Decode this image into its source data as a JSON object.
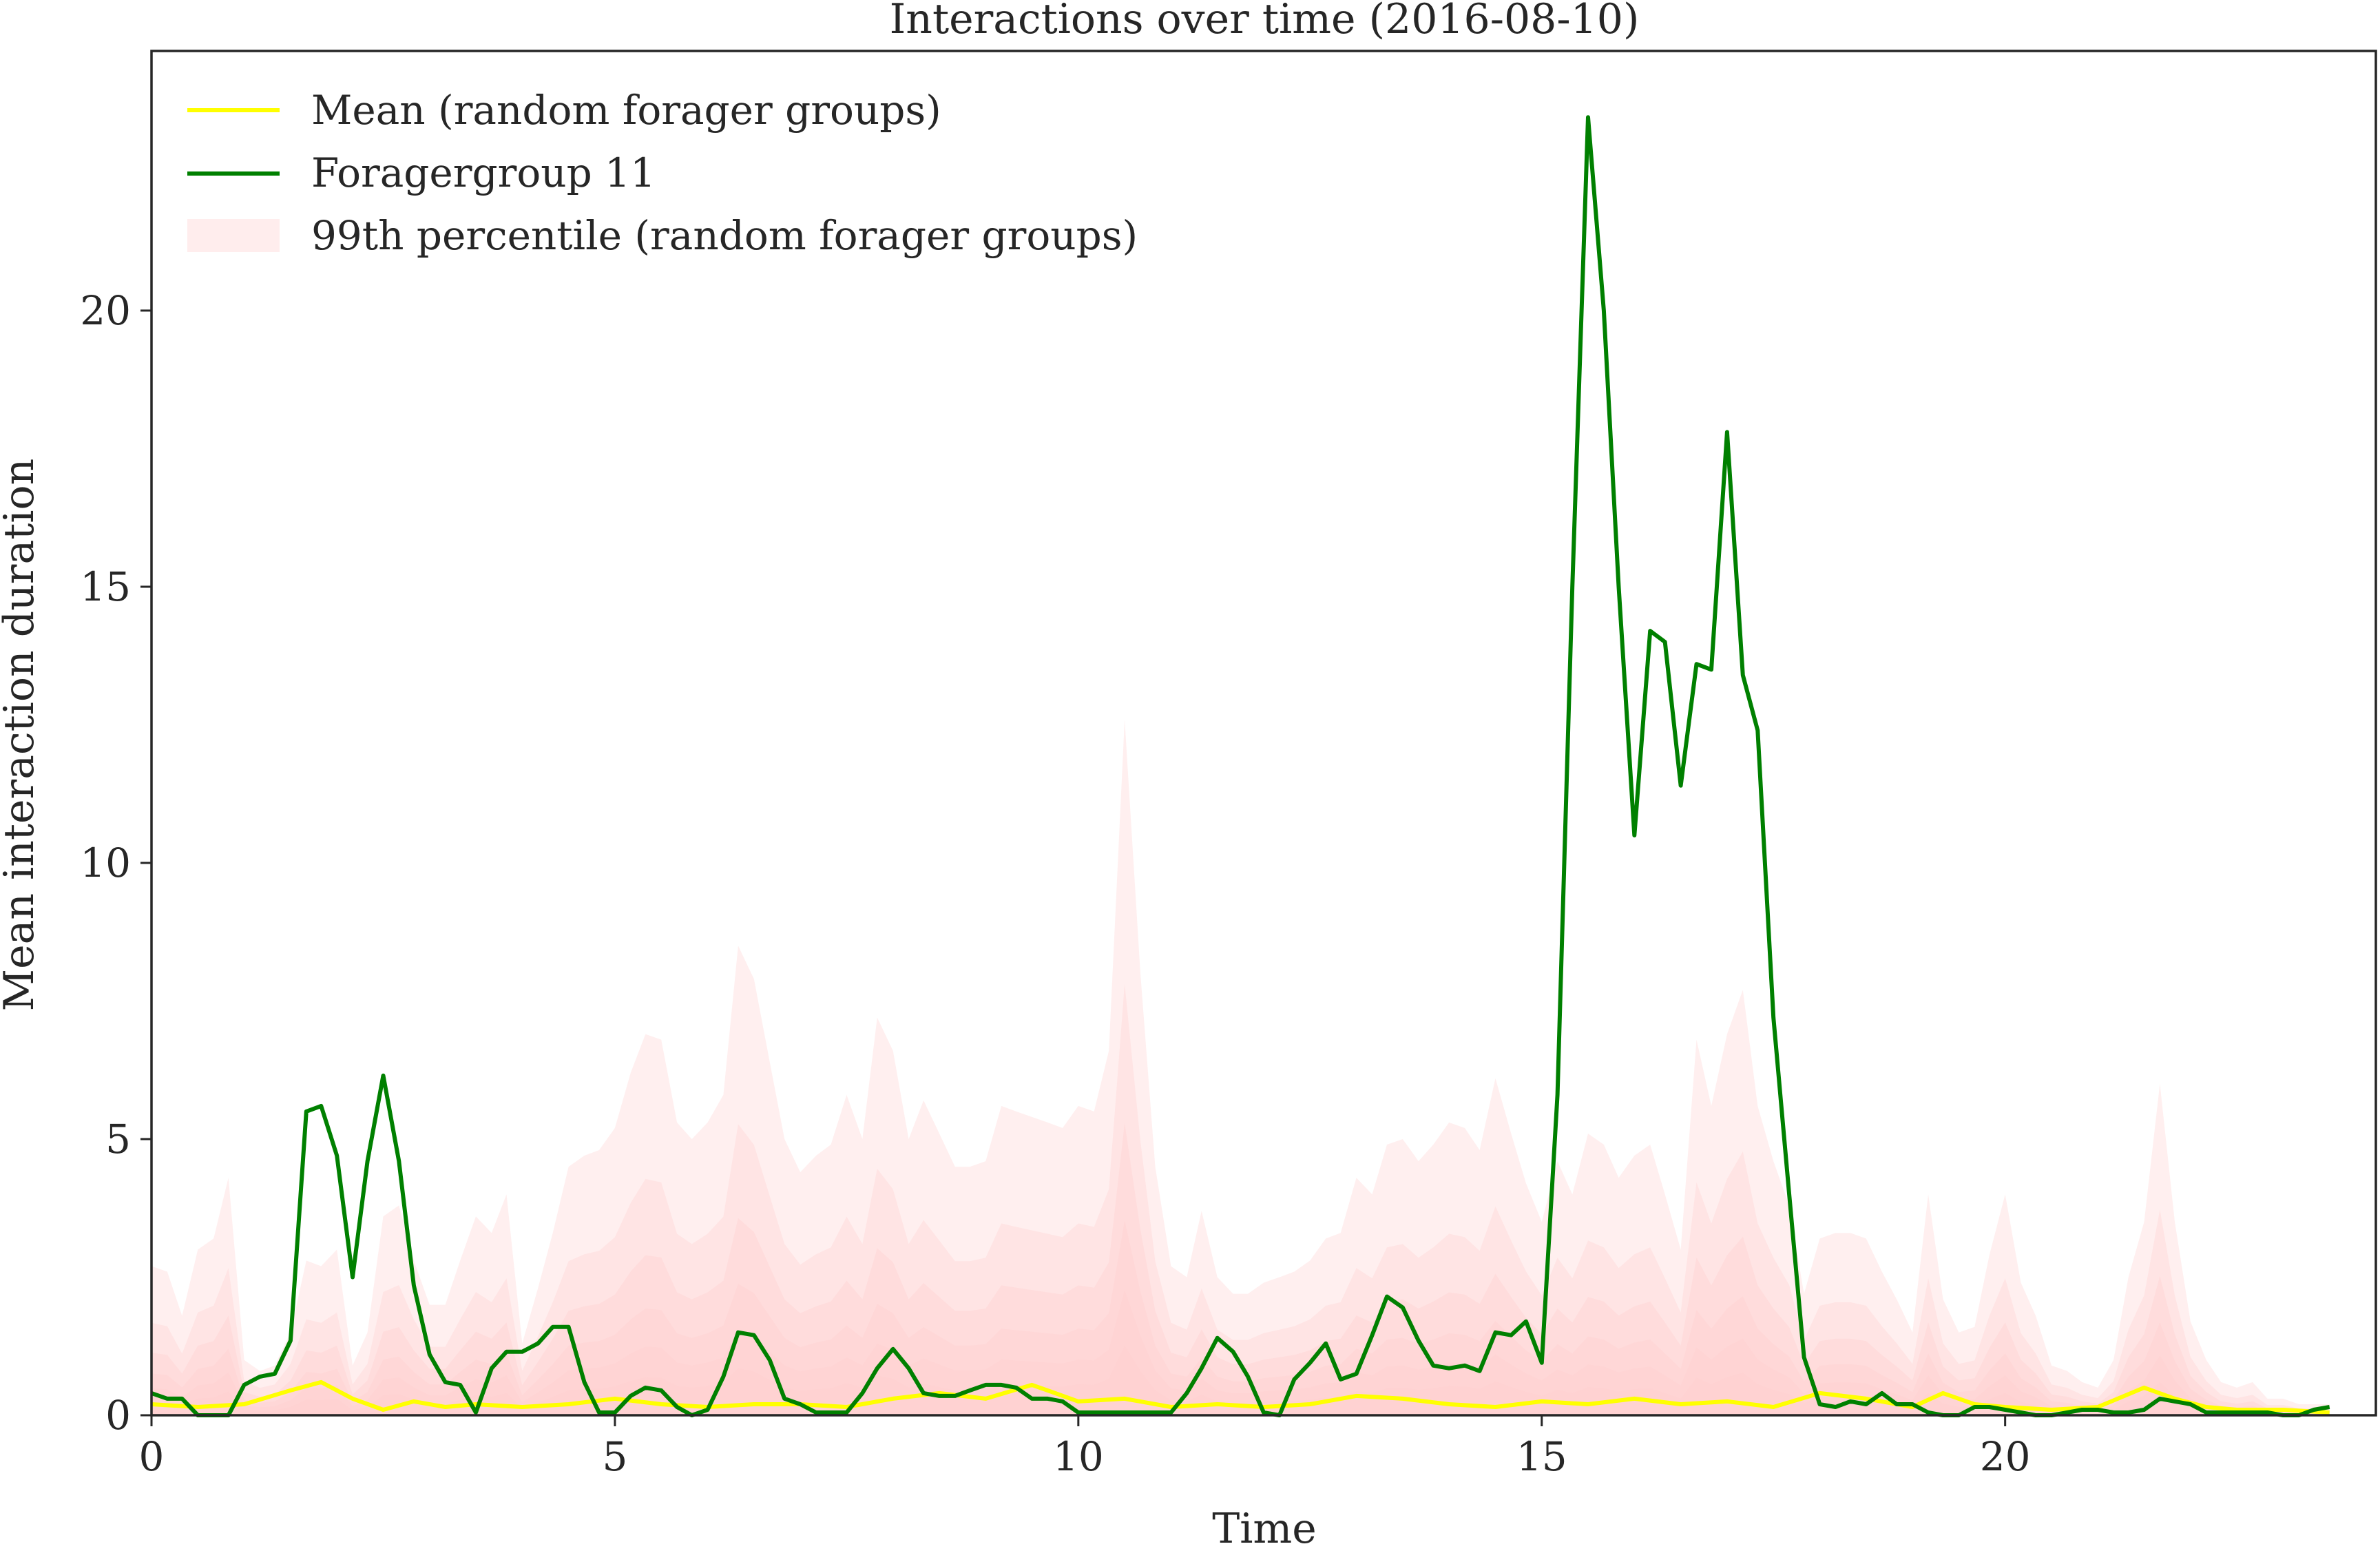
{
  "chart_data": {
    "type": "line",
    "title": "Interactions over time (2016-08-10)",
    "xlabel": "Time",
    "ylabel": "Mean interaction duration",
    "xlim": [
      0,
      24
    ],
    "ylim": [
      0,
      24.7
    ],
    "xticks": [
      0,
      5,
      10,
      15,
      20
    ],
    "yticks": [
      0,
      5,
      10,
      15,
      20
    ],
    "legend_position": "top-left",
    "grid": false,
    "legend": [
      {
        "label": "Mean (random forager groups)",
        "kind": "line",
        "color": "#ffff00"
      },
      {
        "label": "Foragergroup 11",
        "kind": "line",
        "color": "#008000"
      },
      {
        "label": "99th percentile (random forager groups)",
        "kind": "band",
        "color": "#ffcccc"
      }
    ],
    "series": [
      {
        "name": "Foragergroup 11",
        "color": "#008000",
        "x": [
          0,
          0.17,
          0.33,
          0.5,
          0.67,
          0.83,
          1.0,
          1.17,
          1.33,
          1.5,
          1.67,
          1.83,
          2.0,
          2.17,
          2.33,
          2.5,
          2.67,
          2.83,
          3.0,
          3.17,
          3.33,
          3.5,
          3.67,
          3.83,
          4.0,
          4.17,
          4.33,
          4.5,
          4.67,
          4.83,
          5.0,
          5.17,
          5.33,
          5.5,
          5.67,
          5.83,
          6.0,
          6.17,
          6.33,
          6.5,
          6.67,
          6.83,
          7.0,
          7.17,
          7.33,
          7.5,
          7.67,
          7.83,
          8.0,
          8.17,
          8.33,
          8.5,
          8.67,
          8.83,
          9.0,
          9.17,
          9.33,
          9.5,
          9.67,
          9.83,
          10.0,
          10.17,
          10.33,
          10.5,
          10.67,
          10.83,
          11.0,
          11.17,
          11.33,
          11.5,
          11.67,
          11.83,
          12.0,
          12.17,
          12.33,
          12.5,
          12.67,
          12.83,
          13.0,
          13.17,
          13.33,
          13.5,
          13.67,
          13.83,
          14.0,
          14.17,
          14.33,
          14.5,
          14.67,
          14.83,
          15.0,
          15.17,
          15.33,
          15.5,
          15.67,
          15.83,
          16.0,
          16.17,
          16.33,
          16.5,
          16.67,
          16.83,
          17.0,
          17.17,
          17.33,
          17.5,
          17.67,
          17.83,
          18.0,
          18.17,
          18.33,
          18.5,
          18.67,
          18.83,
          19.0,
          19.17,
          19.33,
          19.5,
          19.67,
          19.83,
          20.0,
          20.17,
          20.33,
          20.5,
          20.67,
          20.83,
          21.0,
          21.17,
          21.33,
          21.5,
          21.67,
          21.83,
          22.0,
          22.17,
          22.33,
          22.5,
          22.67,
          22.83,
          23.0,
          23.17,
          23.33,
          23.5
        ],
        "values": [
          0.4,
          0.3,
          0.3,
          0.0,
          0.0,
          0.0,
          0.55,
          0.7,
          0.75,
          1.35,
          5.5,
          5.6,
          4.7,
          2.5,
          4.6,
          6.15,
          4.6,
          2.35,
          1.1,
          0.6,
          0.55,
          0.05,
          0.85,
          1.15,
          1.15,
          1.3,
          1.6,
          1.6,
          0.6,
          0.05,
          0.05,
          0.35,
          0.5,
          0.45,
          0.15,
          0.0,
          0.1,
          0.7,
          1.5,
          1.45,
          1.0,
          0.3,
          0.2,
          0.05,
          0.05,
          0.05,
          0.4,
          0.85,
          1.2,
          0.85,
          0.4,
          0.35,
          0.35,
          0.45,
          0.55,
          0.55,
          0.5,
          0.3,
          0.3,
          0.25,
          0.05,
          0.05,
          0.05,
          0.05,
          0.05,
          0.05,
          0.05,
          0.4,
          0.85,
          1.4,
          1.15,
          0.7,
          0.05,
          0.0,
          0.65,
          0.95,
          1.3,
          0.65,
          0.75,
          1.45,
          2.15,
          1.95,
          1.35,
          0.9,
          0.85,
          0.9,
          0.8,
          1.5,
          1.45,
          1.7,
          0.95,
          5.8,
          15.0,
          23.5,
          20.0,
          15.0,
          10.5,
          14.2,
          14.0,
          11.4,
          13.6,
          13.5,
          17.8,
          13.4,
          12.4,
          7.2,
          4.0,
          1.05,
          0.2,
          0.15,
          0.25,
          0.2,
          0.4,
          0.2,
          0.2,
          0.05,
          0.0,
          0.0,
          0.15,
          0.15,
          0.1,
          0.05,
          0.0,
          0.0,
          0.05,
          0.1,
          0.1,
          0.05,
          0.05,
          0.1,
          0.3,
          0.25,
          0.2,
          0.05,
          0.05,
          0.05,
          0.05,
          0.05,
          0.0,
          0.0,
          0.1,
          0.15
        ]
      },
      {
        "name": "Mean (random forager groups)",
        "color": "#ffff00",
        "x": [
          0,
          0.5,
          1.0,
          1.5,
          1.83,
          2.17,
          2.5,
          2.83,
          3.17,
          3.5,
          4.0,
          4.5,
          5.0,
          5.5,
          6.0,
          6.5,
          7.0,
          7.5,
          8.0,
          8.5,
          9.0,
          9.5,
          10.0,
          10.5,
          11.0,
          11.5,
          12.0,
          12.5,
          13.0,
          13.5,
          14.0,
          14.5,
          15.0,
          15.5,
          16.0,
          16.5,
          17.0,
          17.5,
          18.0,
          18.5,
          19.0,
          19.33,
          19.67,
          20.0,
          20.5,
          21.0,
          21.5,
          21.83,
          22.17,
          22.5,
          23.0,
          23.5
        ],
        "values": [
          0.2,
          0.15,
          0.2,
          0.45,
          0.6,
          0.3,
          0.1,
          0.25,
          0.15,
          0.2,
          0.15,
          0.2,
          0.3,
          0.2,
          0.15,
          0.2,
          0.2,
          0.15,
          0.3,
          0.4,
          0.3,
          0.55,
          0.25,
          0.3,
          0.15,
          0.2,
          0.15,
          0.2,
          0.35,
          0.3,
          0.2,
          0.15,
          0.25,
          0.2,
          0.3,
          0.2,
          0.25,
          0.15,
          0.4,
          0.3,
          0.15,
          0.4,
          0.2,
          0.15,
          0.1,
          0.15,
          0.5,
          0.3,
          0.15,
          0.1,
          0.1,
          0.05
        ]
      }
    ],
    "bands": [
      {
        "name": "99th percentile (random forager groups)",
        "x": [
          0,
          0.17,
          0.33,
          0.5,
          0.67,
          0.83,
          1.0,
          1.17,
          1.33,
          1.5,
          1.67,
          1.83,
          2.0,
          2.17,
          2.33,
          2.5,
          2.67,
          2.83,
          3.0,
          3.17,
          3.33,
          3.5,
          3.67,
          3.83,
          4.0,
          4.17,
          4.33,
          4.5,
          4.67,
          4.83,
          5.0,
          5.17,
          5.33,
          5.5,
          5.67,
          5.83,
          6.0,
          6.17,
          6.33,
          6.5,
          6.67,
          6.83,
          7.0,
          7.17,
          7.33,
          7.5,
          7.67,
          7.83,
          8.0,
          8.17,
          8.33,
          8.5,
          8.67,
          8.83,
          9.0,
          9.17,
          9.33,
          9.5,
          9.67,
          9.83,
          10.0,
          10.17,
          10.33,
          10.5,
          10.67,
          10.83,
          11.0,
          11.17,
          11.33,
          11.5,
          11.67,
          11.83,
          12.0,
          12.17,
          12.33,
          12.5,
          12.67,
          12.83,
          13.0,
          13.17,
          13.33,
          13.5,
          13.67,
          13.83,
          14.0,
          14.17,
          14.33,
          14.5,
          14.67,
          14.83,
          15.0,
          15.17,
          15.33,
          15.5,
          15.67,
          15.83,
          16.0,
          16.17,
          16.33,
          16.5,
          16.67,
          16.83,
          17.0,
          17.17,
          17.33,
          17.5,
          17.67,
          17.83,
          18.0,
          18.17,
          18.33,
          18.5,
          18.67,
          18.83,
          19.0,
          19.17,
          19.33,
          19.5,
          19.67,
          19.83,
          20.0,
          20.17,
          20.33,
          20.5,
          20.67,
          20.83,
          21.0,
          21.17,
          21.33,
          21.5,
          21.67,
          21.83,
          22.0,
          22.17,
          22.33,
          22.5,
          22.67,
          22.83,
          23.0,
          23.17,
          23.33,
          23.5
        ],
        "values": [
          2.7,
          2.6,
          1.8,
          3.0,
          3.2,
          4.3,
          1.0,
          0.8,
          0.9,
          1.5,
          2.8,
          2.7,
          3.0,
          0.9,
          1.5,
          3.6,
          3.8,
          2.8,
          2.0,
          2.0,
          2.8,
          3.6,
          3.3,
          4.0,
          1.3,
          2.3,
          3.3,
          4.5,
          4.7,
          4.8,
          5.2,
          6.2,
          6.9,
          6.8,
          5.3,
          5.0,
          5.3,
          5.8,
          8.5,
          7.9,
          6.4,
          5.0,
          4.4,
          4.7,
          4.9,
          5.8,
          5.0,
          7.2,
          6.6,
          5.0,
          5.7,
          5.1,
          4.5,
          4.5,
          4.6,
          5.6,
          5.5,
          5.4,
          5.3,
          5.2,
          5.6,
          5.5,
          6.6,
          12.6,
          8.0,
          4.5,
          2.7,
          2.5,
          3.7,
          2.5,
          2.2,
          2.2,
          2.4,
          2.5,
          2.6,
          2.8,
          3.2,
          3.3,
          4.3,
          4.0,
          4.9,
          5.0,
          4.6,
          4.9,
          5.3,
          5.2,
          4.8,
          6.1,
          5.1,
          4.2,
          3.5,
          4.6,
          4.0,
          5.1,
          4.9,
          4.3,
          4.7,
          4.9,
          4.0,
          3.0,
          6.8,
          5.6,
          6.9,
          7.7,
          5.6,
          4.6,
          3.8,
          2.2,
          3.2,
          3.3,
          3.3,
          3.2,
          2.6,
          2.1,
          1.5,
          4.0,
          2.1,
          1.5,
          1.6,
          2.9,
          4.0,
          2.4,
          1.8,
          0.9,
          0.8,
          0.6,
          0.5,
          1.0,
          2.5,
          3.5,
          6.0,
          3.5,
          1.7,
          1.0,
          0.6,
          0.5,
          0.6,
          0.3,
          0.3,
          0.2,
          0.2,
          0.2
        ]
      }
    ]
  }
}
